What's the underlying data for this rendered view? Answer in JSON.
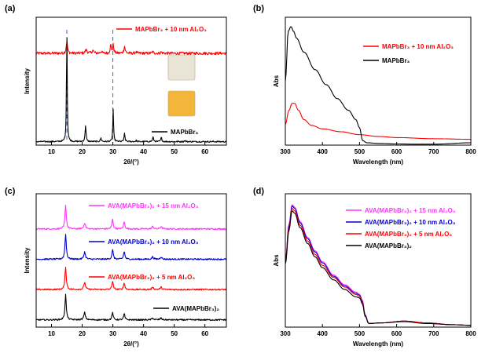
{
  "chart_data": [
    {
      "id": "a",
      "panel_label": "(a)",
      "type": "line",
      "xlabel": "2θ/(°)",
      "ylabel": "Intensity",
      "xlim": [
        5,
        67
      ],
      "ylim": [
        0,
        1.1
      ],
      "xticks": [
        10,
        20,
        30,
        40,
        50,
        60
      ],
      "grid": false,
      "y_tick_labels": false,
      "vlines": [
        15,
        30
      ],
      "vline_color": "#3366cc",
      "insets": [
        {
          "name": "film-photo-with-al2o3",
          "color": "#e9e4d6"
        },
        {
          "name": "film-photo-without-al2o3",
          "color": "#f2b73a"
        }
      ],
      "series": [
        {
          "name": "MAPbBr₃ + 10 nm Al₂O₃",
          "color": "#ff0000",
          "baseline": 0.79,
          "noise": 0.012,
          "peaks": [
            [
              15.0,
              0.1,
              0.25
            ],
            [
              21.3,
              0.03,
              0.35
            ],
            [
              23.5,
              0.025,
              0.3
            ],
            [
              26.2,
              0.015,
              0.3
            ],
            [
              29.3,
              0.07,
              0.22
            ],
            [
              30.1,
              0.07,
              0.22
            ],
            [
              33.8,
              0.06,
              0.25
            ],
            [
              37.5,
              0.01,
              0.3
            ],
            [
              43.0,
              0.012,
              0.3
            ],
            [
              45.8,
              0.01,
              0.3
            ]
          ]
        },
        {
          "name": "MAPbBr₃",
          "color": "#000000",
          "baseline": 0.03,
          "noise": 0.006,
          "peaks": [
            [
              15.0,
              0.96,
              0.14
            ],
            [
              21.1,
              0.14,
              0.18
            ],
            [
              26.1,
              0.03,
              0.2
            ],
            [
              30.1,
              0.28,
              0.15
            ],
            [
              33.8,
              0.07,
              0.18
            ],
            [
              37.6,
              0.01,
              0.2
            ],
            [
              43.1,
              0.04,
              0.2
            ],
            [
              45.8,
              0.035,
              0.2
            ],
            [
              53.5,
              0.01,
              0.2
            ]
          ]
        }
      ]
    },
    {
      "id": "b",
      "panel_label": "(b)",
      "type": "line",
      "xlabel": "Wavelength (nm)",
      "ylabel": "Abs",
      "xlim": [
        300,
        800
      ],
      "ylim": [
        0,
        1.1
      ],
      "xticks": [
        300,
        400,
        500,
        600,
        700,
        800
      ],
      "grid": false,
      "y_tick_labels": false,
      "series": [
        {
          "name": "MAPbBr₃ + 10 nm Al₂O₃",
          "color": "#ff0000",
          "points": [
            [
              300,
              0.18
            ],
            [
              310,
              0.3
            ],
            [
              318,
              0.36
            ],
            [
              325,
              0.36
            ],
            [
              335,
              0.3
            ],
            [
              350,
              0.22
            ],
            [
              370,
              0.17
            ],
            [
              400,
              0.14
            ],
            [
              450,
              0.115
            ],
            [
              500,
              0.09
            ],
            [
              550,
              0.075
            ],
            [
              600,
              0.065
            ],
            [
              700,
              0.055
            ],
            [
              800,
              0.05
            ]
          ]
        },
        {
          "name": "MAPbBr₃",
          "color": "#000000",
          "points": [
            [
              300,
              0.55
            ],
            [
              308,
              0.98
            ],
            [
              315,
              1.02
            ],
            [
              322,
              0.98
            ],
            [
              330,
              0.92
            ],
            [
              350,
              0.8
            ],
            [
              380,
              0.65
            ],
            [
              410,
              0.52
            ],
            [
              440,
              0.4
            ],
            [
              470,
              0.3
            ],
            [
              490,
              0.22
            ],
            [
              500,
              0.15
            ],
            [
              508,
              0.04
            ],
            [
              520,
              0.02
            ],
            [
              550,
              0.015
            ],
            [
              600,
              0.01
            ],
            [
              650,
              0.008
            ],
            [
              700,
              0.008
            ],
            [
              800,
              0.02
            ]
          ]
        }
      ]
    },
    {
      "id": "c",
      "panel_label": "(c)",
      "type": "line",
      "xlabel": "2θ/(°)",
      "ylabel": "Intensity",
      "xlim": [
        5,
        67
      ],
      "ylim": [
        0,
        1.1
      ],
      "xticks": [
        10,
        20,
        30,
        40,
        50,
        60
      ],
      "grid": false,
      "y_tick_labels": false,
      "series": [
        {
          "name": "AVA(MAPbBr₃)₂ + 15 nm Al₂O₃",
          "color": "#ff33ff",
          "baseline": 0.81,
          "noise": 0.006,
          "peaks": [
            [
              14.6,
              0.2,
              0.25
            ],
            [
              20.8,
              0.05,
              0.3
            ],
            [
              29.9,
              0.08,
              0.25
            ],
            [
              33.7,
              0.06,
              0.25
            ],
            [
              43.0,
              0.02,
              0.3
            ],
            [
              45.7,
              0.02,
              0.3
            ]
          ]
        },
        {
          "name": "AVA(MAPbBr₃)₂ + 10 nm Al₂O₃",
          "color": "#0000cc",
          "baseline": 0.56,
          "noise": 0.006,
          "peaks": [
            [
              14.6,
              0.21,
              0.25
            ],
            [
              20.8,
              0.06,
              0.3
            ],
            [
              29.9,
              0.08,
              0.25
            ],
            [
              33.7,
              0.065,
              0.25
            ],
            [
              43.0,
              0.02,
              0.3
            ],
            [
              45.7,
              0.02,
              0.3
            ]
          ]
        },
        {
          "name": "AVA(MAPbBr₃)₂ + 5 nm Al₂O₃",
          "color": "#ff0000",
          "baseline": 0.31,
          "noise": 0.006,
          "peaks": [
            [
              14.6,
              0.19,
              0.25
            ],
            [
              20.8,
              0.06,
              0.3
            ],
            [
              29.9,
              0.07,
              0.25
            ],
            [
              33.7,
              0.055,
              0.25
            ],
            [
              43.0,
              0.02,
              0.3
            ],
            [
              45.7,
              0.02,
              0.3
            ]
          ]
        },
        {
          "name": "AVA(MAPbBr₃)₂",
          "color": "#000000",
          "baseline": 0.06,
          "noise": 0.006,
          "peaks": [
            [
              14.6,
              0.21,
              0.25
            ],
            [
              20.8,
              0.06,
              0.3
            ],
            [
              29.9,
              0.06,
              0.25
            ],
            [
              33.7,
              0.05,
              0.25
            ],
            [
              43.0,
              0.015,
              0.3
            ],
            [
              45.7,
              0.015,
              0.3
            ]
          ]
        }
      ]
    },
    {
      "id": "d",
      "panel_label": "(d)",
      "type": "line",
      "xlabel": "Wavelength (nm)",
      "ylabel": "Abs",
      "xlim": [
        300,
        800
      ],
      "ylim": [
        0,
        1.1
      ],
      "xticks": [
        300,
        400,
        500,
        600,
        700,
        800
      ],
      "grid": false,
      "y_tick_labels": false,
      "series": [
        {
          "name": "AVA(MAPbBr₃)₂ + 15 nm Al₂O₃",
          "color": "#ff33ff",
          "points": [
            [
              300,
              0.55
            ],
            [
              310,
              0.85
            ],
            [
              318,
              1.01
            ],
            [
              325,
              0.99
            ],
            [
              340,
              0.87
            ],
            [
              360,
              0.74
            ],
            [
              380,
              0.63
            ],
            [
              400,
              0.54
            ],
            [
              430,
              0.43
            ],
            [
              460,
              0.35
            ],
            [
              490,
              0.29
            ],
            [
              500,
              0.27
            ],
            [
              508,
              0.22
            ],
            [
              515,
              0.1
            ],
            [
              525,
              0.03
            ],
            [
              560,
              0.035
            ],
            [
              620,
              0.05
            ],
            [
              680,
              0.035
            ],
            [
              750,
              0.02
            ],
            [
              800,
              0.015
            ]
          ]
        },
        {
          "name": "AVA(MAPbBr₃)₂ + 10 nm Al₂O₃",
          "color": "#0000cc",
          "points": [
            [
              300,
              0.54
            ],
            [
              310,
              0.84
            ],
            [
              318,
              1.0
            ],
            [
              325,
              0.98
            ],
            [
              340,
              0.86
            ],
            [
              360,
              0.73
            ],
            [
              380,
              0.62
            ],
            [
              400,
              0.53
            ],
            [
              430,
              0.42
            ],
            [
              460,
              0.34
            ],
            [
              490,
              0.28
            ],
            [
              500,
              0.265
            ],
            [
              508,
              0.21
            ],
            [
              515,
              0.1
            ],
            [
              525,
              0.03
            ],
            [
              560,
              0.035
            ],
            [
              620,
              0.05
            ],
            [
              680,
              0.035
            ],
            [
              750,
              0.02
            ],
            [
              800,
              0.015
            ]
          ]
        },
        {
          "name": "AVA(MAPbBr₃)₂ + 5 nm Al₂O₃",
          "color": "#ff0000",
          "points": [
            [
              300,
              0.53
            ],
            [
              310,
              0.82
            ],
            [
              318,
              0.98
            ],
            [
              325,
              0.96
            ],
            [
              340,
              0.84
            ],
            [
              360,
              0.71
            ],
            [
              380,
              0.6
            ],
            [
              400,
              0.51
            ],
            [
              430,
              0.41
            ],
            [
              460,
              0.33
            ],
            [
              490,
              0.27
            ],
            [
              500,
              0.255
            ],
            [
              508,
              0.2
            ],
            [
              515,
              0.09
            ],
            [
              525,
              0.03
            ],
            [
              560,
              0.035
            ],
            [
              620,
              0.05
            ],
            [
              680,
              0.035
            ],
            [
              750,
              0.02
            ],
            [
              800,
              0.015
            ]
          ]
        },
        {
          "name": "AVA(MAPbBr₃)₂",
          "color": "#000000",
          "points": [
            [
              300,
              0.52
            ],
            [
              310,
              0.8
            ],
            [
              318,
              0.96
            ],
            [
              325,
              0.94
            ],
            [
              340,
              0.82
            ],
            [
              360,
              0.69
            ],
            [
              380,
              0.58
            ],
            [
              400,
              0.49
            ],
            [
              430,
              0.39
            ],
            [
              460,
              0.31
            ],
            [
              490,
              0.25
            ],
            [
              500,
              0.24
            ],
            [
              508,
              0.19
            ],
            [
              515,
              0.09
            ],
            [
              525,
              0.03
            ],
            [
              560,
              0.035
            ],
            [
              620,
              0.045
            ],
            [
              680,
              0.03
            ],
            [
              750,
              0.02
            ],
            [
              800,
              0.015
            ]
          ]
        }
      ]
    }
  ]
}
